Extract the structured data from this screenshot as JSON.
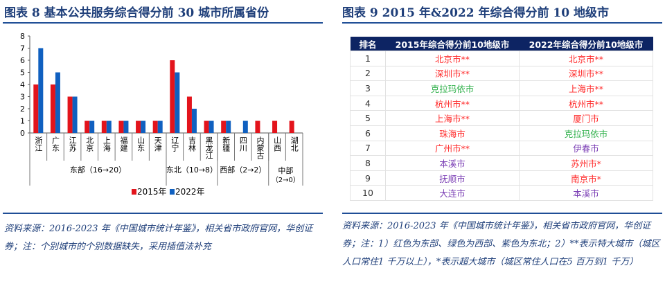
{
  "left": {
    "title": "图表 8   基本公共服务综合得分前 30 城市所属省份",
    "note": "资料来源：2016-2023 年《中国城市统计年鉴》，相关省市政府官网，华创证券；注：个别城市的个别数据缺失，采用插值法补充"
  },
  "right": {
    "title": "图表 9   2015 年&2022 年综合得分前 10 地级市",
    "note": "资料来源：2016-2023 年《中国城市统计年鉴》，相关省市政府官网，华创证券；注：1）红色为东部、绿色为西部、紫色为东北；2）**表示特大城市（城区人口常住1 千万以上），*表示超大城市（城区常住人口在5 百万到1 千万）"
  },
  "colors": {
    "east": "#ff2a2a",
    "west": "#2fb04a",
    "northeast": "#7b3fb5",
    "s2015": "#e3141c",
    "s2022": "#1060c0",
    "header": "#0d2463"
  },
  "chart_data": {
    "type": "bar",
    "categories": [
      "浙江",
      "广东",
      "江苏",
      "北京",
      "上海",
      "福建",
      "山东",
      "天津",
      "辽宁",
      "吉林",
      "黑龙江",
      "新疆",
      "四川",
      "内蒙古",
      "山西",
      "湖北"
    ],
    "groups": [
      {
        "label": "东部（16→20）",
        "count": 8
      },
      {
        "label": "东北（10→8）",
        "count": 3
      },
      {
        "label": "西部（2→2）",
        "count": 3
      },
      {
        "label": "中部（2→0）",
        "count": 2
      }
    ],
    "series": [
      {
        "name": "2015年",
        "values": [
          4,
          4,
          3,
          1,
          1,
          1,
          1,
          1,
          6,
          3,
          1,
          1,
          0,
          1,
          1,
          1
        ]
      },
      {
        "name": "2022年",
        "values": [
          7,
          5,
          3,
          1,
          1,
          1,
          1,
          1,
          5,
          2,
          1,
          1,
          1,
          0,
          0,
          0
        ]
      }
    ],
    "yticks": [
      "0",
      "1",
      "2",
      "3",
      "4",
      "5",
      "6",
      "7",
      "8"
    ],
    "ylim": [
      0,
      8
    ],
    "legend": "bottom",
    "grid": false
  },
  "table": {
    "headers": [
      "排名",
      "2015年综合得分前10地级市",
      "2022年综合得分前10地级市"
    ],
    "rows": [
      {
        "rank": "1",
        "c2015": "北京市**",
        "r2015": "east",
        "c2022": "北京市**",
        "r2022": "east"
      },
      {
        "rank": "2",
        "c2015": "深圳市**",
        "r2015": "east",
        "c2022": "深圳市**",
        "r2022": "east"
      },
      {
        "rank": "3",
        "c2015": "克拉玛依市",
        "r2015": "west",
        "c2022": "上海市**",
        "r2022": "east"
      },
      {
        "rank": "4",
        "c2015": "杭州市**",
        "r2015": "east",
        "c2022": "杭州市**",
        "r2022": "east"
      },
      {
        "rank": "5",
        "c2015": "上海市**",
        "r2015": "east",
        "c2022": "厦门市",
        "r2022": "east"
      },
      {
        "rank": "6",
        "c2015": "珠海市",
        "r2015": "east",
        "c2022": "克拉玛依市",
        "r2022": "west"
      },
      {
        "rank": "7",
        "c2015": "广州市**",
        "r2015": "east",
        "c2022": "伊春市",
        "r2022": "northeast"
      },
      {
        "rank": "8",
        "c2015": "本溪市",
        "r2015": "northeast",
        "c2022": "苏州市*",
        "r2022": "east"
      },
      {
        "rank": "9",
        "c2015": "抚顺市",
        "r2015": "northeast",
        "c2022": "南京市*",
        "r2022": "east"
      },
      {
        "rank": "10",
        "c2015": "大连市",
        "r2015": "northeast",
        "c2022": "本溪市",
        "r2022": "northeast"
      }
    ]
  }
}
